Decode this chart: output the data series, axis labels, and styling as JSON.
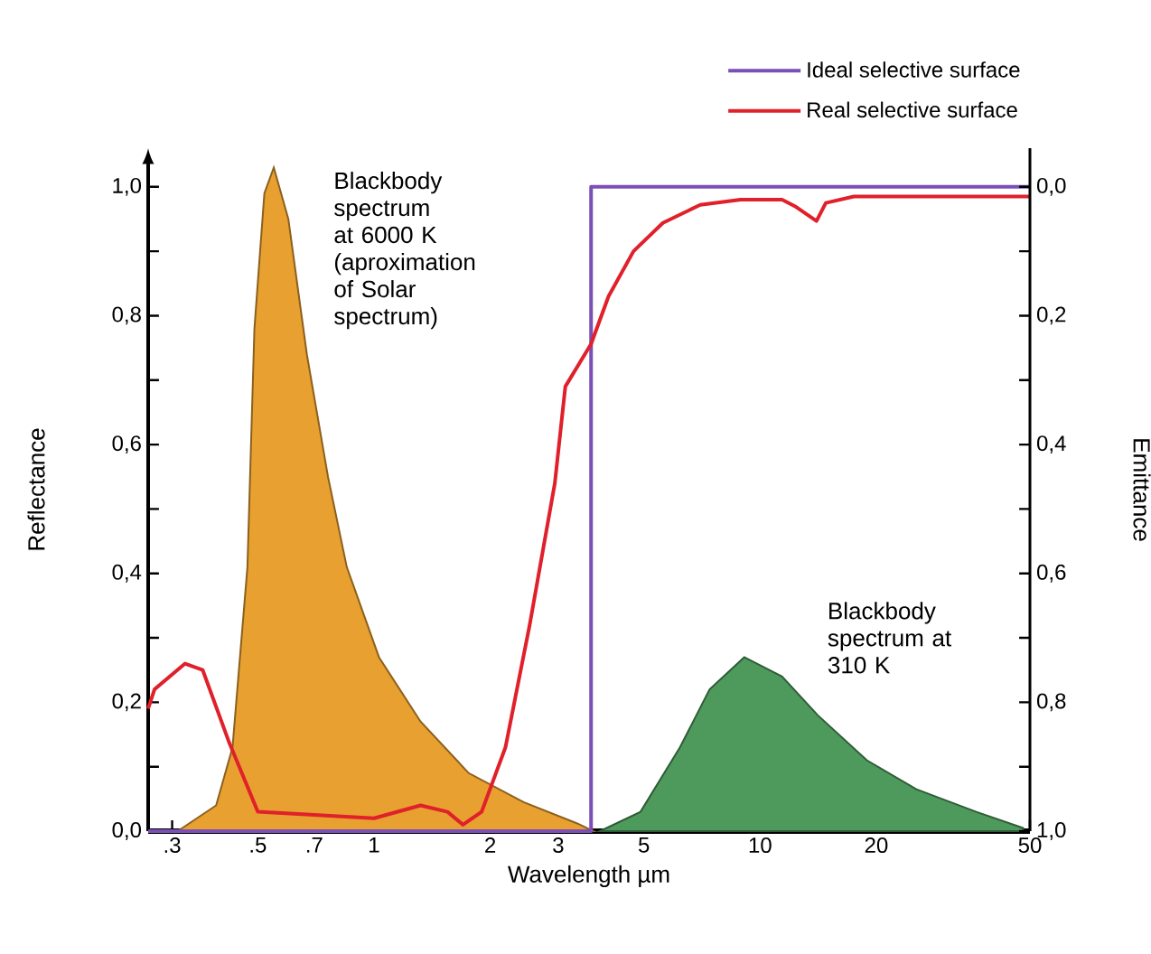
{
  "chart_data": {
    "type": "line",
    "xlabel": "Wavelength µm",
    "ylabel": "Reflectance",
    "y2label": "Emittance",
    "log": "x",
    "legend": "top right",
    "marker": "none",
    "xlim": [
      0.26,
      50
    ],
    "xticks": [
      {
        "value": 0.3,
        "label": ".3"
      },
      {
        "value": 0.4,
        "label": null
      },
      {
        "value": 0.5,
        "label": ".5"
      },
      {
        "value": 0.7,
        "label": ".7"
      },
      1,
      {
        "value": 1.5,
        "label": null
      },
      2,
      {
        "value": 2.5,
        "label": null
      },
      3,
      5,
      10,
      20,
      {
        "value": 30,
        "label": null
      },
      {
        "value": 40,
        "label": null
      },
      50
    ],
    "ylim": [
      0,
      1.06
    ],
    "yticks": [
      {
        "value": 0,
        "label": "0,0"
      },
      {
        "value": 0.1,
        "label": null
      },
      {
        "value": 0.2,
        "label": "0,2"
      },
      {
        "value": 0.3,
        "label": null
      },
      {
        "value": 0.4,
        "label": "0,4"
      },
      {
        "value": 0.5,
        "label": null
      },
      {
        "value": 0.6,
        "label": "0,6"
      },
      {
        "value": 0.7,
        "label": null
      },
      {
        "value": 0.8,
        "label": "0,8"
      },
      {
        "value": 0.9,
        "label": null
      },
      {
        "value": 1,
        "label": "1,0"
      }
    ],
    "y2lim": [
      1,
      -0.06
    ],
    "y2ticks": [
      {
        "value": 0,
        "label": "0,0"
      },
      {
        "value": 0.1,
        "label": null
      },
      {
        "value": 0.2,
        "label": "0,2"
      },
      {
        "value": 0.3,
        "label": null
      },
      {
        "value": 0.4,
        "label": "0,4"
      },
      {
        "value": 0.5,
        "label": null
      },
      {
        "value": 0.6,
        "label": "0,6"
      },
      {
        "value": 0.7,
        "label": null
      },
      {
        "value": 0.8,
        "label": "0,8"
      },
      {
        "value": 0.9,
        "label": null
      },
      {
        "value": 1,
        "label": "1,0"
      }
    ],
    "series": [
      {
        "type": "area",
        "color": "#e8a030",
        "x": [
          0.31,
          0.39,
          0.43,
          0.47,
          0.49,
          0.52,
          0.55,
          0.6,
          0.67,
          0.76,
          0.85,
          1.03,
          1.32,
          1.76,
          2.44,
          3.36,
          3.7
        ],
        "values": [
          0,
          0.04,
          0.13,
          0.41,
          0.78,
          0.99,
          1.03,
          0.95,
          0.74,
          0.55,
          0.41,
          0.27,
          0.17,
          0.09,
          0.045,
          0.012,
          0
        ]
      },
      {
        "type": "area",
        "color": "#4e9a5c",
        "x": [
          3.85,
          4.9,
          6.2,
          7.4,
          9.1,
          11.4,
          14.1,
          18.9,
          25.4,
          36.3,
          48
        ],
        "values": [
          0,
          0.03,
          0.13,
          0.22,
          0.27,
          0.24,
          0.18,
          0.11,
          0.065,
          0.03,
          0.005
        ]
      },
      {
        "name": "Ideal selective surface",
        "color": "#7b4fb5",
        "x": [
          0.26,
          3.65,
          3.65,
          50
        ],
        "values": [
          0,
          0,
          1,
          1
        ]
      },
      {
        "name": "Real selective surface",
        "color": "#e0202a",
        "x": [
          0.26,
          0.27,
          0.324,
          0.36,
          0.42,
          0.5,
          1.0,
          1.32,
          1.55,
          1.7,
          1.9,
          2.19,
          2.53,
          2.94,
          3.13,
          3.65,
          4.05,
          4.7,
          5.6,
          7.0,
          8.9,
          11.4,
          12.3,
          14.0,
          14.8,
          17.5,
          50
        ],
        "values": [
          0.19,
          0.22,
          0.26,
          0.25,
          0.14,
          0.03,
          0.02,
          0.04,
          0.03,
          0.01,
          0.03,
          0.13,
          0.32,
          0.54,
          0.69,
          0.756,
          0.83,
          0.9,
          0.944,
          0.972,
          0.98,
          0.98,
          0.97,
          0.947,
          0.975,
          0.985,
          0.985
        ]
      }
    ],
    "annotations": [
      "Blackbody spectrum at 6000 K (aproximation of Solar spectrum)",
      "Blackbody spectrum at 310 K"
    ]
  }
}
